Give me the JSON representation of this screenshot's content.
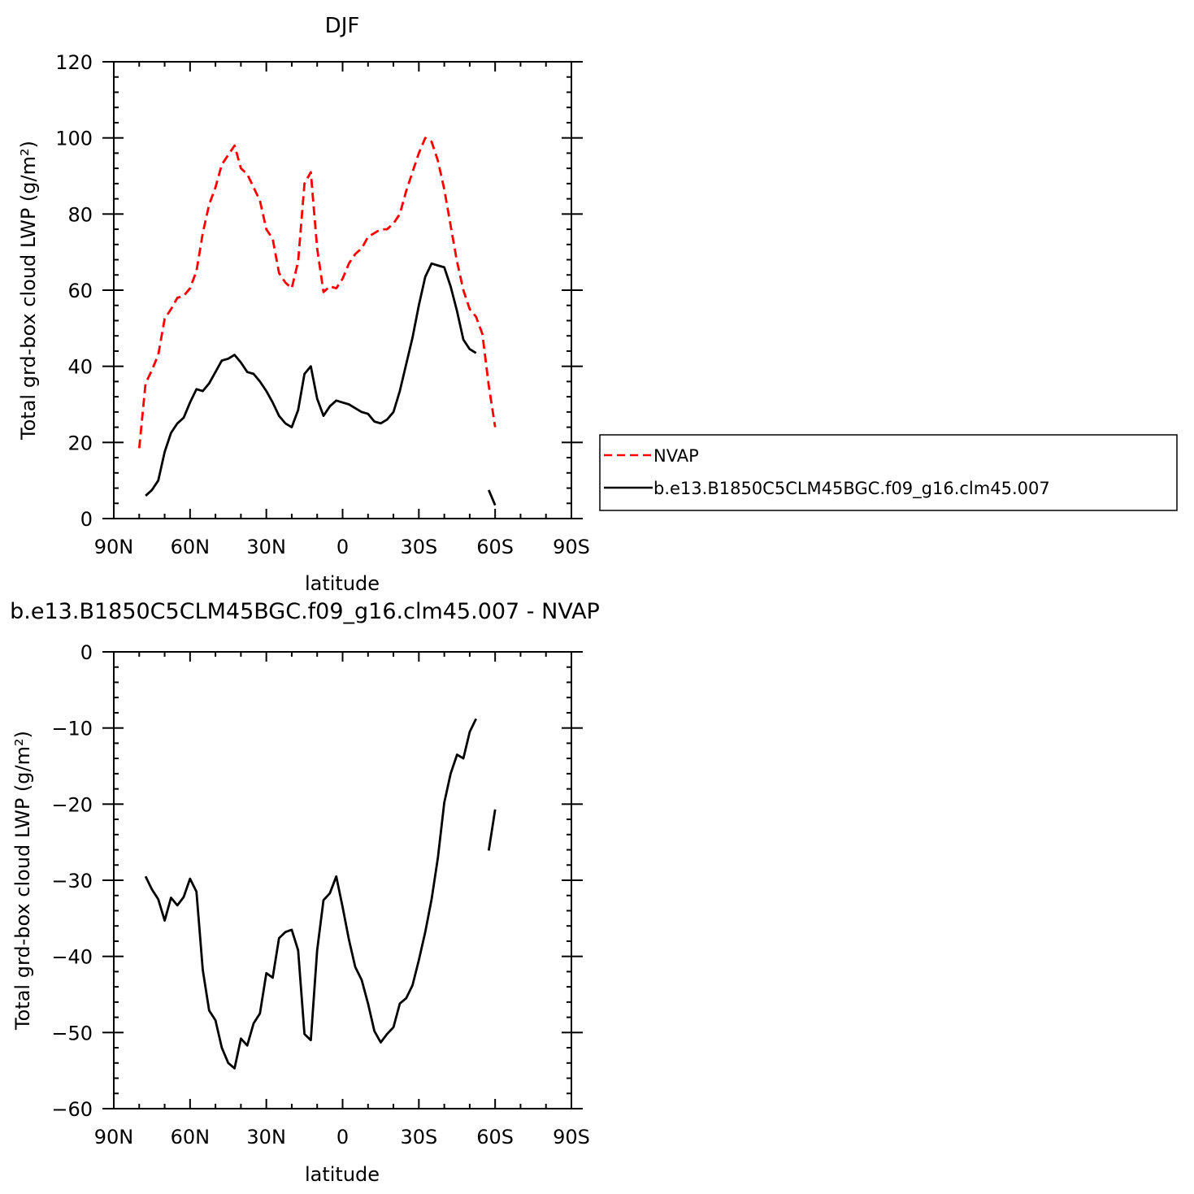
{
  "colors": {
    "obs": "#ff0000",
    "model": "#000000",
    "axis": "#000000"
  },
  "legend": {
    "entries": [
      "NVAP",
      "b.e13.B1850C5CLM45BGC.f09_g16.clm45.007"
    ]
  },
  "chart_data": [
    {
      "type": "line",
      "title": "DJF",
      "xlabel": "latitude",
      "ylabel": "Total grd-box cloud LWP (g/m²)",
      "xlim": [
        -90,
        90
      ],
      "ylim": [
        0,
        120
      ],
      "xticks": [
        -90,
        -60,
        -30,
        0,
        30,
        60,
        90
      ],
      "xtick_labels": [
        "90N",
        "60N",
        "30N",
        "0",
        "30S",
        "60S",
        "90S"
      ],
      "yticks": [
        0,
        20,
        40,
        60,
        80,
        100,
        120
      ],
      "ytick_labels": [
        "0",
        "20",
        "40",
        "60",
        "80",
        "100",
        "120"
      ],
      "grid": false,
      "legend_position": "right",
      "series": [
        {
          "name": "NVAP",
          "style": "dashed",
          "color": "#ff0000",
          "segments": [
            [
              [
                -80,
                18.5
              ],
              [
                -77.5,
                35.5
              ],
              [
                -75,
                39
              ],
              [
                -72.5,
                43
              ],
              [
                -70,
                52.5
              ],
              [
                -67.5,
                55
              ],
              [
                -65,
                58
              ],
              [
                -62.5,
                58.5
              ],
              [
                -60,
                60.5
              ],
              [
                -57.5,
                65
              ],
              [
                -55,
                75
              ],
              [
                -52.5,
                82.5
              ],
              [
                -50,
                87
              ],
              [
                -47.5,
                93
              ],
              [
                -45,
                95.5
              ],
              [
                -42.5,
                98
              ],
              [
                -40,
                92
              ],
              [
                -37.5,
                90.5
              ],
              [
                -35,
                87
              ],
              [
                -32.5,
                83.5
              ],
              [
                -30,
                76
              ],
              [
                -27.5,
                73.5
              ],
              [
                -25,
                64.5
              ],
              [
                -22.5,
                62
              ],
              [
                -20,
                60.5
              ],
              [
                -17.5,
                67.5
              ],
              [
                -15,
                88
              ],
              [
                -12.5,
                91
              ],
              [
                -10,
                71
              ],
              [
                -7.5,
                59.5
              ],
              [
                -5,
                61
              ],
              [
                -2.5,
                60.5
              ],
              [
                0,
                63
              ],
              [
                2.5,
                67
              ],
              [
                5,
                69.5
              ],
              [
                7.5,
                71
              ],
              [
                10,
                74
              ],
              [
                12.5,
                75
              ],
              [
                15,
                76
              ],
              [
                17.5,
                76
              ],
              [
                20,
                77.5
              ],
              [
                22.5,
                80
              ],
              [
                25,
                86
              ],
              [
                27.5,
                91
              ],
              [
                30,
                96
              ],
              [
                32.5,
                100
              ],
              [
                35,
                99
              ],
              [
                37.5,
                94
              ],
              [
                40,
                86.5
              ],
              [
                42.5,
                77
              ],
              [
                45,
                67.5
              ],
              [
                47.5,
                60
              ],
              [
                50,
                55
              ],
              [
                52.5,
                53
              ],
              [
                55,
                48.5
              ],
              [
                57.5,
                35
              ],
              [
                60,
                24
              ]
            ]
          ]
        },
        {
          "name": "b.e13.B1850C5CLM45BGC.f09_g16.clm45.007",
          "style": "solid",
          "color": "#000000",
          "segments": [
            [
              [
                -77.5,
                6
              ],
              [
                -75,
                7.5
              ],
              [
                -72.5,
                10
              ],
              [
                -70,
                17.5
              ],
              [
                -67.5,
                22.5
              ],
              [
                -65,
                25
              ],
              [
                -62.5,
                26.5
              ],
              [
                -60,
                30.5
              ],
              [
                -57.5,
                34
              ],
              [
                -55,
                33.5
              ],
              [
                -52.5,
                35.5
              ],
              [
                -50,
                38.5
              ],
              [
                -47.5,
                41.5
              ],
              [
                -45,
                42
              ],
              [
                -42.5,
                43
              ],
              [
                -40,
                41
              ],
              [
                -37.5,
                38.5
              ],
              [
                -35,
                38
              ],
              [
                -32.5,
                36
              ],
              [
                -30,
                33.5
              ],
              [
                -27.5,
                30.5
              ],
              [
                -25,
                27
              ],
              [
                -22.5,
                25
              ],
              [
                -20,
                24
              ],
              [
                -17.5,
                28.5
              ],
              [
                -15,
                38
              ],
              [
                -12.5,
                40
              ],
              [
                -10,
                31.5
              ],
              [
                -7.5,
                27
              ],
              [
                -5,
                29.5
              ],
              [
                -2.5,
                31
              ],
              [
                0,
                30.5
              ],
              [
                2.5,
                30
              ],
              [
                5,
                29
              ],
              [
                7.5,
                28
              ],
              [
                10,
                27.5
              ],
              [
                12.5,
                25.5
              ],
              [
                15,
                25
              ],
              [
                17.5,
                26
              ],
              [
                20,
                28
              ],
              [
                22.5,
                33.5
              ],
              [
                25,
                40.5
              ],
              [
                27.5,
                47.5
              ],
              [
                30,
                56
              ],
              [
                32.5,
                63.5
              ],
              [
                35,
                67
              ],
              [
                37.5,
                66.5
              ],
              [
                40,
                66
              ],
              [
                42.5,
                61
              ],
              [
                45,
                54.5
              ],
              [
                47.5,
                47
              ],
              [
                50,
                44.5
              ],
              [
                52.5,
                43.5
              ]
            ],
            [
              [
                57.5,
                7.5
              ],
              [
                60,
                3.5
              ]
            ]
          ]
        }
      ]
    },
    {
      "type": "line",
      "title": "b.e13.B1850C5CLM45BGC.f09_g16.clm45.007 - NVAP",
      "xlabel": "latitude",
      "ylabel": "Total grd-box cloud LWP (g/m²)",
      "xlim": [
        -90,
        90
      ],
      "ylim": [
        -60,
        0
      ],
      "xticks": [
        -90,
        -60,
        -30,
        0,
        30,
        60,
        90
      ],
      "xtick_labels": [
        "90N",
        "60N",
        "30N",
        "0",
        "30S",
        "60S",
        "90S"
      ],
      "yticks": [
        -60,
        -50,
        -40,
        -30,
        -20,
        -10,
        0
      ],
      "ytick_labels": [
        "−60",
        "−50",
        "−40",
        "−30",
        "−20",
        "−10",
        "0"
      ],
      "grid": false,
      "series": [
        {
          "style": "solid",
          "color": "#000000",
          "segments": [
            [
              [
                -77.5,
                -29.5
              ],
              [
                -75,
                -31.2
              ],
              [
                -72.5,
                -32.5
              ],
              [
                -70,
                -35.3
              ],
              [
                -67.5,
                -32.3
              ],
              [
                -65,
                -33.3
              ],
              [
                -62.5,
                -32.2
              ],
              [
                -60,
                -29.8
              ],
              [
                -57.5,
                -31.5
              ],
              [
                -55,
                -41.8
              ],
              [
                -52.5,
                -47.1
              ],
              [
                -50,
                -48.4
              ],
              [
                -47.5,
                -52
              ],
              [
                -45,
                -54
              ],
              [
                -42.5,
                -54.7
              ],
              [
                -40,
                -50.8
              ],
              [
                -37.5,
                -51.7
              ],
              [
                -35,
                -48.8
              ],
              [
                -32.5,
                -47.5
              ],
              [
                -30,
                -42.2
              ],
              [
                -27.5,
                -42.8
              ],
              [
                -25,
                -37.6
              ],
              [
                -22.5,
                -36.8
              ],
              [
                -20,
                -36.5
              ],
              [
                -17.5,
                -39.2
              ],
              [
                -15,
                -50.2
              ],
              [
                -12.5,
                -51
              ],
              [
                -10,
                -39.2
              ],
              [
                -7.5,
                -32.6
              ],
              [
                -5,
                -31.7
              ],
              [
                -2.5,
                -29.5
              ],
              [
                0,
                -33.5
              ],
              [
                2.5,
                -37.8
              ],
              [
                5,
                -41.4
              ],
              [
                7.5,
                -43.1
              ],
              [
                10,
                -46.2
              ],
              [
                12.5,
                -49.8
              ],
              [
                15,
                -51.3
              ],
              [
                17.5,
                -50.2
              ],
              [
                20,
                -49.3
              ],
              [
                22.5,
                -46.2
              ],
              [
                25,
                -45.5
              ],
              [
                27.5,
                -43.8
              ],
              [
                30,
                -40.5
              ],
              [
                32.5,
                -36.8
              ],
              [
                35,
                -32.5
              ],
              [
                37.5,
                -27
              ],
              [
                40,
                -19.8
              ],
              [
                42.5,
                -16
              ],
              [
                45,
                -13.5
              ],
              [
                47.5,
                -14
              ],
              [
                50,
                -10.5
              ],
              [
                52.5,
                -8.8
              ]
            ],
            [
              [
                57.5,
                -26.1
              ],
              [
                60,
                -20.7
              ]
            ]
          ]
        }
      ]
    }
  ]
}
